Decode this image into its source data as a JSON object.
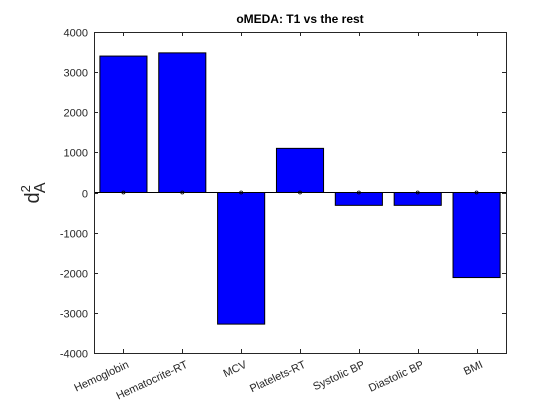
{
  "chart_data": {
    "type": "bar",
    "title": "oMEDA: T1 vs the rest",
    "ylabel": {
      "base": "d",
      "superscript": "2",
      "subscript": "A"
    },
    "xlabel": "",
    "categories": [
      "Hemoglobin",
      "Hematocrite-RT",
      "MCV",
      "Platelets-RT",
      "Systolic BP",
      "Diastolic BP",
      "BMI"
    ],
    "values": [
      3400,
      3480,
      -3280,
      1100,
      -320,
      -320,
      -2120
    ],
    "ylim": [
      -4000,
      4000
    ],
    "yticks": [
      -4000,
      -3000,
      -2000,
      -1000,
      0,
      1000,
      2000,
      3000,
      4000
    ],
    "grid": false,
    "bar_color": "#0000ff",
    "bar_edge_color": "#000000",
    "legend": "none"
  }
}
